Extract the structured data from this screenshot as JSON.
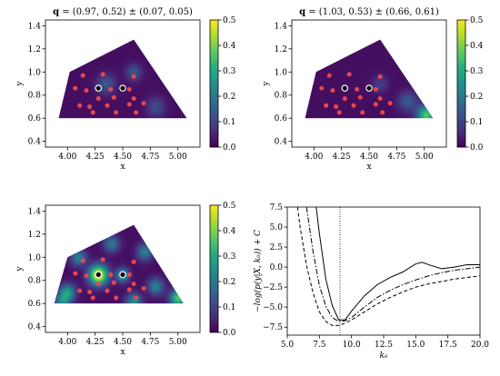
{
  "chart_data": [
    {
      "type": "heatmap",
      "title_prefix": "q",
      "title_rest": " = (0.97, 0.52) ± (0.07, 0.05)",
      "xlabel": "x",
      "ylabel": "y",
      "xlim": [
        3.8,
        5.2
      ],
      "ylim": [
        0.35,
        1.45
      ],
      "xticks": [
        4.0,
        4.25,
        4.5,
        4.75,
        5.0
      ],
      "xticklabels": [
        "4.00",
        "4.25",
        "4.50",
        "4.75",
        "5.00"
      ],
      "yticks": [
        0.4,
        0.6,
        0.8,
        1.0,
        1.2,
        1.4
      ],
      "yticklabels": [
        "0.4",
        "0.6",
        "0.8",
        "1.0",
        "1.2",
        "1.4"
      ],
      "colorbar": {
        "range": [
          0,
          0.5
        ],
        "ticks": [
          0.0,
          0.1,
          0.2,
          0.3,
          0.4,
          0.5
        ],
        "ticklabels": [
          "0.0",
          "0.1",
          "0.2",
          "0.3",
          "0.4",
          "0.5"
        ],
        "colormap": "viridis"
      },
      "region": [
        [
          3.92,
          0.6
        ],
        [
          4.02,
          1.0
        ],
        [
          4.6,
          1.28
        ],
        [
          5.08,
          0.6
        ]
      ],
      "points": [
        [
          4.14,
          0.97
        ],
        [
          4.32,
          0.98
        ],
        [
          4.6,
          0.96
        ],
        [
          4.07,
          0.86
        ],
        [
          4.17,
          0.84
        ],
        [
          4.39,
          0.85
        ],
        [
          4.56,
          0.85
        ],
        [
          4.28,
          0.77
        ],
        [
          4.42,
          0.78
        ],
        [
          4.6,
          0.77
        ],
        [
          4.11,
          0.71
        ],
        [
          4.2,
          0.7
        ],
        [
          4.36,
          0.71
        ],
        [
          4.56,
          0.72
        ],
        [
          4.69,
          0.73
        ],
        [
          4.23,
          0.65
        ],
        [
          4.44,
          0.65
        ],
        [
          4.62,
          0.65
        ]
      ],
      "markers": [
        [
          4.28,
          0.86
        ],
        [
          4.5,
          0.86
        ]
      ],
      "bumps": [
        [
          4.6,
          1.0,
          0.05,
          0.12
        ],
        [
          4.35,
          0.9,
          0.06,
          0.12
        ],
        [
          4.8,
          0.7,
          0.06,
          0.1
        ]
      ]
    },
    {
      "type": "heatmap",
      "title_prefix": "q",
      "title_rest": " = (1.03, 0.53) ± (0.66, 0.61)",
      "xlabel": "x",
      "ylabel": "y",
      "xlim": [
        3.8,
        5.2
      ],
      "ylim": [
        0.35,
        1.45
      ],
      "xticks": [
        4.0,
        4.25,
        4.5,
        4.75,
        5.0
      ],
      "xticklabels": [
        "4.00",
        "4.25",
        "4.50",
        "4.75",
        "5.00"
      ],
      "yticks": [
        0.4,
        0.6,
        0.8,
        1.0,
        1.2,
        1.4
      ],
      "yticklabels": [
        "0.4",
        "0.6",
        "0.8",
        "1.0",
        "1.2",
        "1.4"
      ],
      "colorbar": {
        "range": [
          0,
          0.5
        ],
        "ticks": [
          0.0,
          0.1,
          0.2,
          0.3,
          0.4,
          0.5
        ],
        "ticklabels": [
          "0.0",
          "0.1",
          "0.2",
          "0.3",
          "0.4",
          "0.5"
        ],
        "colormap": "viridis"
      },
      "region": [
        [
          3.92,
          0.6
        ],
        [
          4.02,
          1.0
        ],
        [
          4.6,
          1.28
        ],
        [
          5.08,
          0.6
        ]
      ],
      "points": [
        [
          4.14,
          0.97
        ],
        [
          4.32,
          0.98
        ],
        [
          4.6,
          0.96
        ],
        [
          4.07,
          0.86
        ],
        [
          4.17,
          0.84
        ],
        [
          4.39,
          0.85
        ],
        [
          4.56,
          0.85
        ],
        [
          4.28,
          0.77
        ],
        [
          4.42,
          0.78
        ],
        [
          4.6,
          0.77
        ],
        [
          4.11,
          0.71
        ],
        [
          4.2,
          0.7
        ],
        [
          4.36,
          0.71
        ],
        [
          4.56,
          0.72
        ],
        [
          4.69,
          0.73
        ],
        [
          4.23,
          0.65
        ],
        [
          4.44,
          0.65
        ],
        [
          4.62,
          0.65
        ]
      ],
      "markers": [
        [
          4.28,
          0.86
        ],
        [
          4.5,
          0.86
        ]
      ],
      "bumps": [
        [
          5.02,
          0.63,
          0.06,
          0.35
        ],
        [
          4.85,
          0.75,
          0.06,
          0.12
        ],
        [
          4.6,
          0.9,
          0.05,
          0.08
        ]
      ]
    },
    {
      "type": "heatmap",
      "title_prefix": "",
      "title_rest": "",
      "xlabel": "x",
      "ylabel": "y",
      "xlim": [
        3.8,
        5.2
      ],
      "ylim": [
        0.35,
        1.45
      ],
      "xticks": [
        4.0,
        4.25,
        4.5,
        4.75,
        5.0
      ],
      "xticklabels": [
        "4.00",
        "4.25",
        "4.50",
        "4.75",
        "5.00"
      ],
      "yticks": [
        0.4,
        0.6,
        0.8,
        1.0,
        1.2,
        1.4
      ],
      "yticklabels": [
        "0.4",
        "0.6",
        "0.8",
        "1.0",
        "1.2",
        "1.4"
      ],
      "colorbar": {
        "range": [
          0,
          0.5
        ],
        "ticks": [
          0.0,
          0.1,
          0.2,
          0.3,
          0.4,
          0.5
        ],
        "ticklabels": [
          "0.0",
          "0.1",
          "0.2",
          "0.3",
          "0.4",
          "0.5"
        ],
        "colormap": "viridis"
      },
      "region": [
        [
          3.88,
          0.6
        ],
        [
          4.0,
          1.0
        ],
        [
          4.6,
          1.28
        ],
        [
          5.05,
          0.6
        ]
      ],
      "points": [
        [
          4.14,
          0.97
        ],
        [
          4.32,
          0.98
        ],
        [
          4.6,
          0.96
        ],
        [
          4.07,
          0.86
        ],
        [
          4.17,
          0.84
        ],
        [
          4.39,
          0.85
        ],
        [
          4.56,
          0.85
        ],
        [
          4.28,
          0.77
        ],
        [
          4.42,
          0.78
        ],
        [
          4.6,
          0.77
        ],
        [
          4.11,
          0.71
        ],
        [
          4.2,
          0.7
        ],
        [
          4.36,
          0.71
        ],
        [
          4.56,
          0.72
        ],
        [
          4.69,
          0.73
        ],
        [
          4.23,
          0.65
        ],
        [
          4.44,
          0.65
        ],
        [
          4.62,
          0.65
        ]
      ],
      "markers": [
        [
          4.28,
          0.85
        ],
        [
          4.5,
          0.85
        ]
      ],
      "bumps": [
        [
          4.28,
          0.85,
          0.06,
          0.5
        ],
        [
          4.5,
          0.85,
          0.04,
          0.3
        ],
        [
          4.0,
          0.7,
          0.05,
          0.25
        ],
        [
          4.1,
          1.0,
          0.05,
          0.2
        ],
        [
          4.7,
          1.05,
          0.05,
          0.2
        ],
        [
          4.8,
          0.75,
          0.05,
          0.2
        ],
        [
          4.6,
          0.62,
          0.05,
          0.22
        ],
        [
          5.0,
          0.65,
          0.05,
          0.35
        ],
        [
          4.4,
          1.12,
          0.05,
          0.18
        ],
        [
          3.95,
          0.62,
          0.05,
          0.2
        ]
      ]
    },
    {
      "type": "line",
      "xlabel": "k₀",
      "ylabel": "−log(p(y|X, k₀)) + C",
      "xlim": [
        5.0,
        20.0
      ],
      "ylim": [
        -8.5,
        7.5
      ],
      "xticks": [
        5.0,
        7.5,
        10.0,
        12.5,
        15.0,
        17.5,
        20.0
      ],
      "xticklabels": [
        "5.0",
        "7.5",
        "10.0",
        "12.5",
        "15.0",
        "17.5",
        "20.0"
      ],
      "yticks": [
        -7.5,
        -5.0,
        -2.5,
        0.0,
        2.5,
        5.0,
        7.5
      ],
      "yticklabels": [
        "−7.5",
        "−5.0",
        "−2.5",
        "0.0",
        "2.5",
        "5.0",
        "7.5"
      ],
      "vline": 9.1,
      "series": [
        {
          "style": "solid",
          "x": [
            7.25,
            7.5,
            8.0,
            8.5,
            9.0,
            9.5,
            10.0,
            11.0,
            12.0,
            13.0,
            14.0,
            15.0,
            15.5,
            16.0,
            17.0,
            18.0,
            19.0,
            20.0
          ],
          "y": [
            7.5,
            4.2,
            -1.5,
            -4.8,
            -6.6,
            -6.6,
            -5.5,
            -3.6,
            -2.2,
            -1.3,
            -0.6,
            0.4,
            0.6,
            0.3,
            -0.2,
            0.0,
            0.3,
            0.3
          ]
        },
        {
          "style": "dashdot",
          "x": [
            6.5,
            7.0,
            7.5,
            8.0,
            8.5,
            9.0,
            9.5,
            10.0,
            11.0,
            12.0,
            13.0,
            14.0,
            15.0,
            16.0,
            17.0,
            18.0,
            19.0,
            20.0
          ],
          "y": [
            7.5,
            2.0,
            -2.3,
            -4.9,
            -6.3,
            -6.8,
            -6.7,
            -6.3,
            -5.0,
            -3.8,
            -2.9,
            -2.2,
            -1.6,
            -1.1,
            -0.7,
            -0.4,
            -0.2,
            0.0
          ]
        },
        {
          "style": "dashed",
          "x": [
            5.8,
            6.0,
            6.5,
            7.0,
            7.5,
            8.0,
            8.5,
            9.0,
            9.5,
            10.0,
            11.0,
            12.0,
            13.0,
            14.0,
            15.0,
            16.0,
            17.0,
            18.0,
            19.0,
            20.0
          ],
          "y": [
            7.5,
            5.0,
            0.2,
            -3.2,
            -5.6,
            -6.8,
            -7.3,
            -7.3,
            -7.0,
            -6.6,
            -5.6,
            -4.6,
            -3.8,
            -3.1,
            -2.5,
            -2.1,
            -1.8,
            -1.5,
            -1.3,
            -1.1
          ]
        }
      ]
    }
  ]
}
